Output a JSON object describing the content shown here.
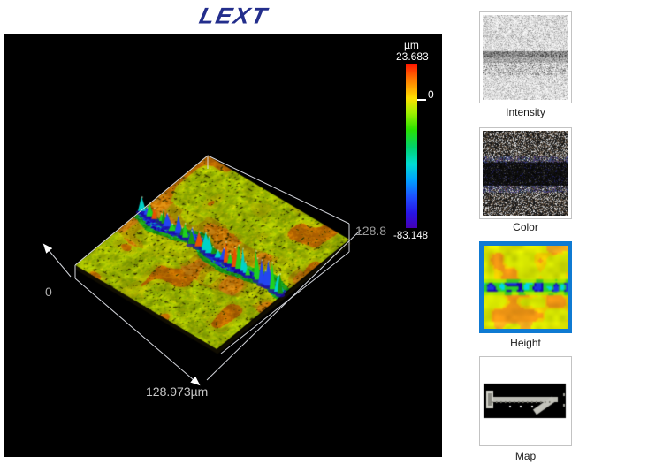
{
  "logo": {
    "text": "LEXT"
  },
  "viewer": {
    "axes": {
      "origin_label": "0",
      "width_label": "128.973µm",
      "depth_label": "128.8"
    },
    "scale_bar": {
      "unit": "µm",
      "max": "23.683",
      "zero": "0",
      "min": "-83.148",
      "gradient_stops": [
        "#ff1400 0%",
        "#ff7d00 10%",
        "#ffe000 21%",
        "#a0f000 30%",
        "#2ae000 40%",
        "#00d26e 51%",
        "#00dcd2 61%",
        "#00a0ff 71%",
        "#1e50ff 81%",
        "#2814e6 91%",
        "#4600b4 100%"
      ]
    }
  },
  "panels": {
    "items": [
      {
        "id": "intensity",
        "label": "Intensity",
        "selected": false
      },
      {
        "id": "color",
        "label": "Color",
        "selected": false
      },
      {
        "id": "height",
        "label": "Height",
        "selected": true
      },
      {
        "id": "map",
        "label": "Map",
        "selected": false
      }
    ]
  },
  "colors": {
    "logo_blue": "#232e8c",
    "selected_border": "#0f7ad2",
    "thumb_border": "#c3c3c3",
    "viewer_bg": "#000000"
  }
}
